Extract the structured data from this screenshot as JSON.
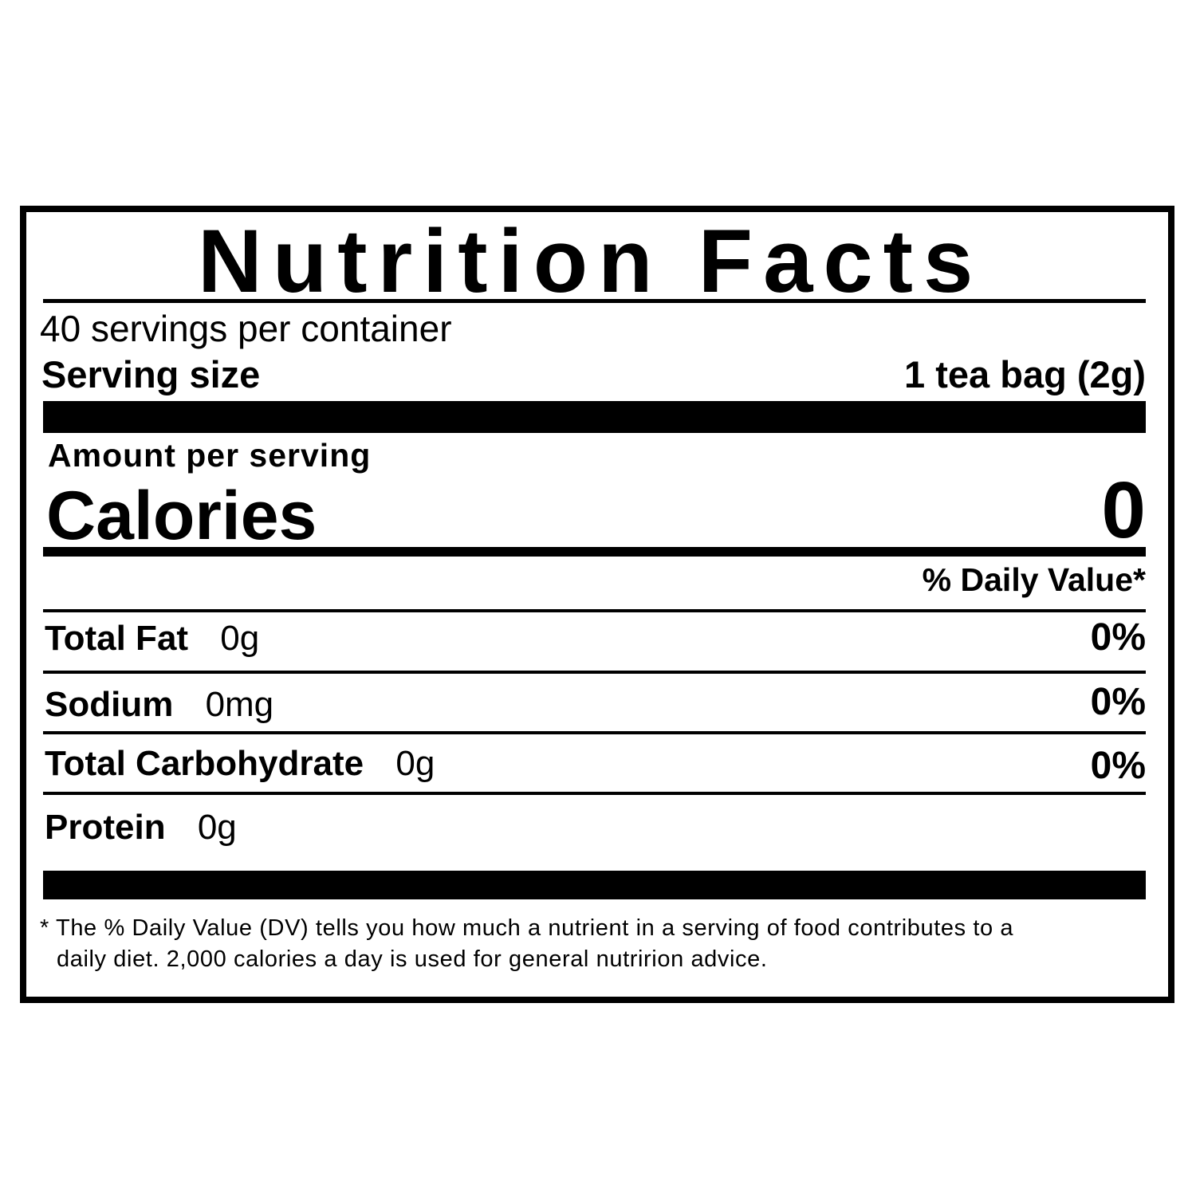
{
  "title": "Nutrition Facts",
  "servings_per_container": "40 servings per container",
  "serving_size": {
    "label": "Serving size",
    "value": "1 tea bag (2g)"
  },
  "amount_per_serving": "Amount per serving",
  "calories": {
    "label": "Calories",
    "value": "0"
  },
  "daily_value_header": "% Daily Value*",
  "nutrients": [
    {
      "name": "Total Fat",
      "amount": "0g",
      "dv": "0%"
    },
    {
      "name": "Sodium",
      "amount": "0mg",
      "dv": "0%"
    },
    {
      "name": "Total Carbohydrate",
      "amount": "0g",
      "dv": "0%"
    },
    {
      "name": "Protein",
      "amount": "0g",
      "dv": ""
    }
  ],
  "footnote": {
    "line1": "* The % Daily Value (DV) tells you how much a nutrient in a serving of food contributes to a",
    "line2": "daily diet. 2,000 calories a day is used for general nutririon advice."
  }
}
